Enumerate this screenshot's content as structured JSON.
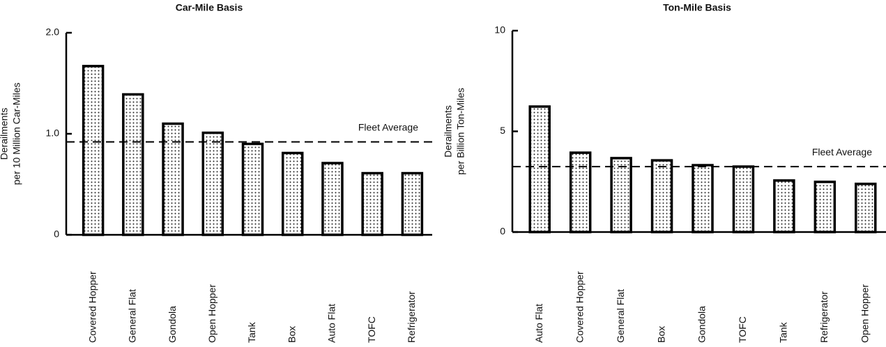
{
  "chart_data": [
    {
      "type": "bar",
      "title": "Car-Mile Basis",
      "y_label": [
        "Derailments",
        "per 10 Million Car-Miles"
      ],
      "categories": [
        "Covered Hopper",
        "General Flat",
        "Gondola",
        "Open Hopper",
        "Tank",
        "Box",
        "Auto Flat",
        "TOFC",
        "Refrigerator"
      ],
      "values": [
        1.67,
        1.39,
        1.1,
        1.01,
        0.9,
        0.81,
        0.71,
        0.61,
        0.61
      ],
      "color": "#000000",
      "ylim": [
        0,
        2
      ],
      "yticks": [
        0,
        {
          "value": 1,
          "label": "1.0"
        },
        {
          "value": 2,
          "label": "2.0"
        }
      ],
      "reference_line": {
        "label": "Fleet Average",
        "value": 0.92
      }
    },
    {
      "type": "bar",
      "title": "Ton-Mile Basis",
      "y_label": [
        "Derailments",
        "per Billion Ton-Miles"
      ],
      "categories": [
        "Auto Flat",
        "Covered Hopper",
        "General Flat",
        "Box",
        "Gondola",
        "TOFC",
        "Tank",
        "Refrigerator",
        "Open Hopper"
      ],
      "values": [
        6.23,
        3.94,
        3.67,
        3.56,
        3.32,
        3.25,
        2.56,
        2.49,
        2.39
      ],
      "color": "#000000",
      "ylim": [
        0,
        10
      ],
      "yticks": [
        0,
        5,
        10
      ],
      "reference_line": {
        "label": "Fleet Average",
        "value": 3.25
      }
    }
  ]
}
